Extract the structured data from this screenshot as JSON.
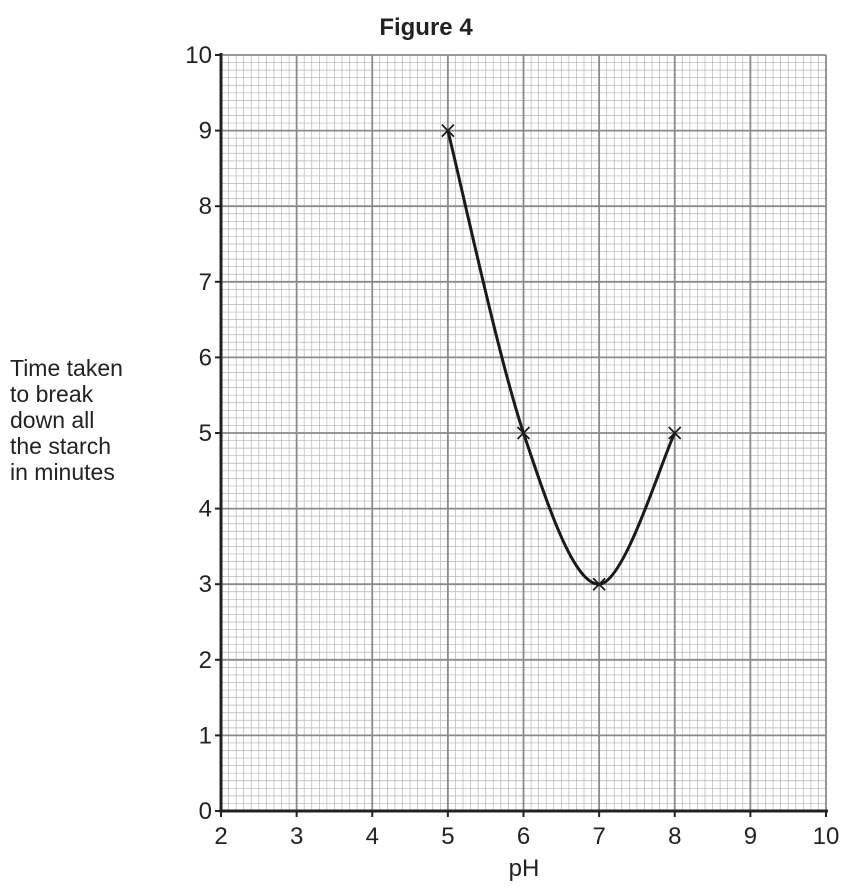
{
  "chart_data": {
    "type": "line",
    "title": "Figure 4",
    "xlabel": "pH",
    "ylabel_lines": [
      "Time taken",
      "to break",
      "down all",
      "the starch",
      "in minutes"
    ],
    "xlim": [
      2,
      10
    ],
    "ylim": [
      0,
      10
    ],
    "x_ticks": [
      2,
      3,
      4,
      5,
      6,
      7,
      8,
      9,
      10
    ],
    "y_ticks": [
      0,
      1,
      2,
      3,
      4,
      5,
      6,
      7,
      8,
      9,
      10
    ],
    "grid": true,
    "marker": "x",
    "series": [
      {
        "x": [
          5,
          6,
          7,
          8
        ],
        "values": [
          9,
          5,
          3,
          5
        ]
      }
    ]
  }
}
